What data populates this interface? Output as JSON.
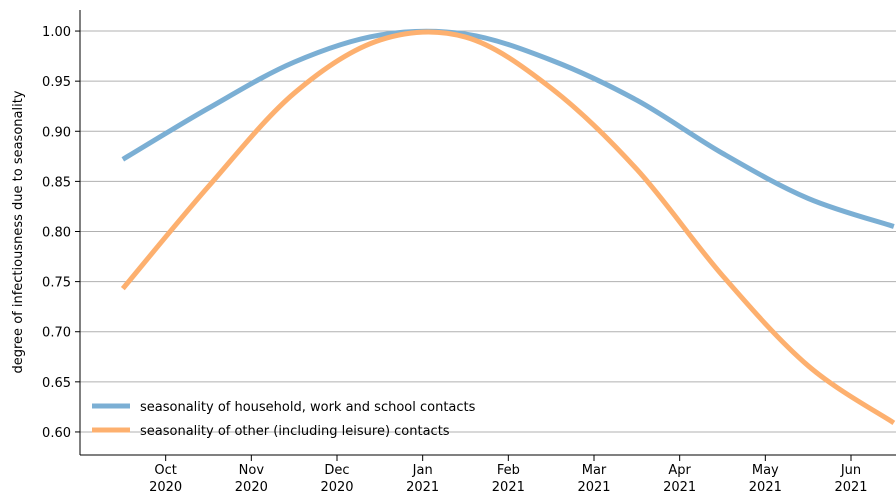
{
  "chart_data": {
    "type": "line",
    "y_label": "degree of infectiousness due to seasonality",
    "x": [
      "2020-09",
      "2020-10",
      "2020-11",
      "2020-12",
      "2021-01",
      "2021-02",
      "2021-03",
      "2021-04",
      "2021-05",
      "2021-06"
    ],
    "series": [
      {
        "name": "seasonality of household, work and school contacts",
        "color": "#7bafd4",
        "values": [
          0.872,
          0.923,
          0.969,
          0.996,
          0.997,
          0.971,
          0.931,
          0.878,
          0.833,
          0.805
        ]
      },
      {
        "name": "seasonality of other (including leisure) contacts",
        "color": "#fdb06f",
        "values": [
          0.743,
          0.845,
          0.938,
          0.991,
          0.994,
          0.943,
          0.862,
          0.756,
          0.666,
          0.609
        ]
      }
    ],
    "xlim": [
      "2020-09",
      "2021-06"
    ],
    "xticks": [
      {
        "value": "2020-10",
        "label": [
          "Oct",
          "2020"
        ]
      },
      {
        "value": "2020-11",
        "label": [
          "Nov",
          "2020"
        ]
      },
      {
        "value": "2020-12",
        "label": [
          "Dec",
          "2020"
        ]
      },
      {
        "value": "2021-01",
        "label": [
          "Jan",
          "2021"
        ]
      },
      {
        "value": "2021-02",
        "label": [
          "Feb",
          "2021"
        ]
      },
      {
        "value": "2021-03",
        "label": [
          "Mar",
          "2021"
        ]
      },
      {
        "value": "2021-04",
        "label": [
          "Apr",
          "2021"
        ]
      },
      {
        "value": "2021-05",
        "label": [
          "May",
          "2021"
        ]
      },
      {
        "value": "2021-06",
        "label": [
          "Jun",
          "2021"
        ]
      }
    ],
    "ylim": [
      0.577,
      1.021
    ],
    "yticks": [
      {
        "value": 0.6,
        "label": "0.60"
      },
      {
        "value": 0.65,
        "label": "0.65"
      },
      {
        "value": 0.7,
        "label": "0.70"
      },
      {
        "value": 0.75,
        "label": "0.75"
      },
      {
        "value": 0.8,
        "label": "0.80"
      },
      {
        "value": 0.85,
        "label": "0.85"
      },
      {
        "value": 0.9,
        "label": "0.90"
      },
      {
        "value": 0.95,
        "label": "0.95"
      },
      {
        "value": 1.0,
        "label": "1.00"
      }
    ],
    "grid": true,
    "legend": "lower left"
  }
}
